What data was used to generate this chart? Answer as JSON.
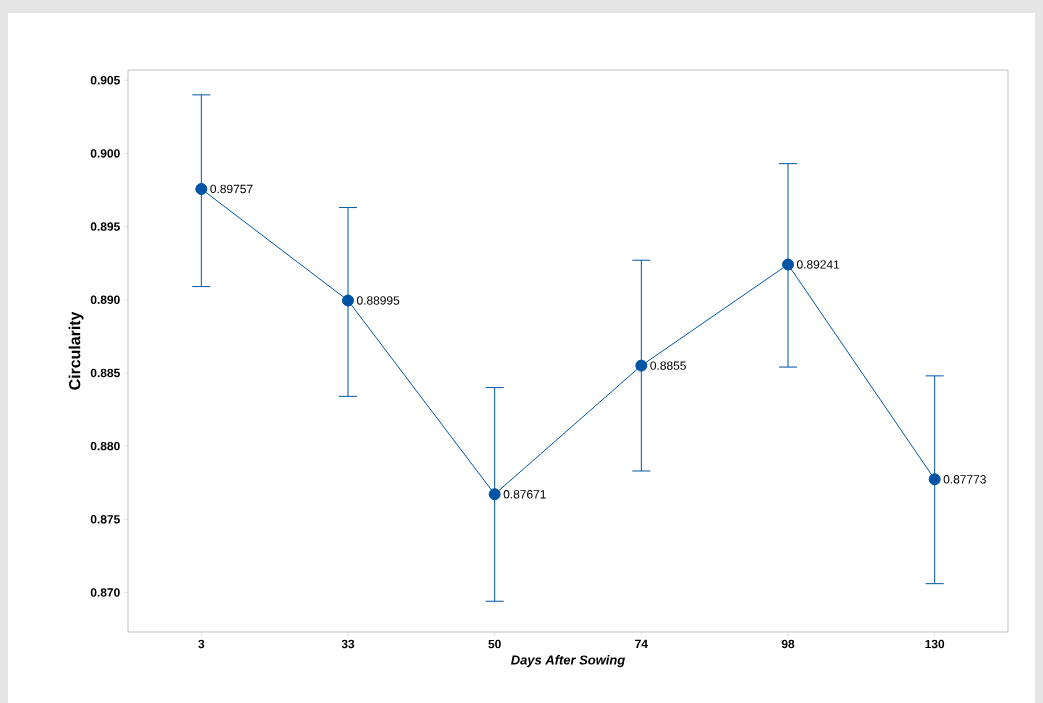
{
  "chart_data": {
    "type": "line",
    "xlabel": "Days After Sowing",
    "ylabel": "Circularity",
    "categories": [
      "3",
      "33",
      "50",
      "74",
      "98",
      "130"
    ],
    "values": [
      0.89757,
      0.88995,
      0.87671,
      0.8855,
      0.89241,
      0.87773
    ],
    "errors": [
      [
        0.8909,
        0.904
      ],
      [
        0.8834,
        0.8963
      ],
      [
        0.8694,
        0.884
      ],
      [
        0.8783,
        0.8927
      ],
      [
        0.8854,
        0.8993
      ],
      [
        0.8706,
        0.8848
      ]
    ],
    "color": "#0054a6",
    "marker": "circle",
    "line_style": "solid",
    "data_labels": true,
    "grid": false,
    "ylim": [
      0.8673,
      0.9057
    ],
    "yticks": [
      {
        "value": 0.87,
        "label": "0.870"
      },
      {
        "value": 0.875,
        "label": "0.875"
      },
      {
        "value": 0.88,
        "label": "0.880"
      },
      {
        "value": 0.885,
        "label": "0.885"
      },
      {
        "value": 0.89,
        "label": "0.890"
      },
      {
        "value": 0.895,
        "label": "0.895"
      },
      {
        "value": 0.9,
        "label": "0.900"
      },
      {
        "value": 0.905,
        "label": "0.905"
      }
    ]
  }
}
